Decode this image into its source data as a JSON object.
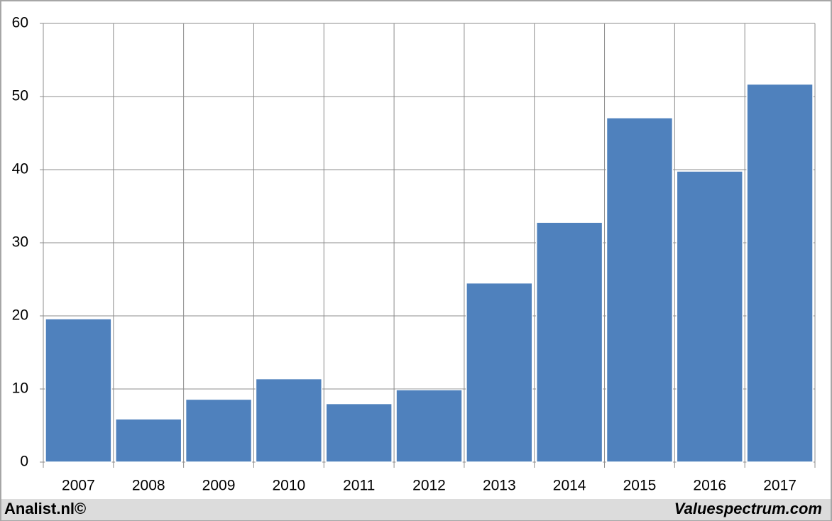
{
  "chart_data": {
    "type": "bar",
    "categories": [
      "2007",
      "2008",
      "2009",
      "2010",
      "2011",
      "2012",
      "2013",
      "2014",
      "2015",
      "2016",
      "2017"
    ],
    "values": [
      19.6,
      5.9,
      8.6,
      11.4,
      8.0,
      9.9,
      24.5,
      32.8,
      47.1,
      39.8,
      51.7
    ],
    "color": "#4f81bd",
    "ylim": [
      0,
      60
    ],
    "yticks": [
      0,
      10,
      20,
      30,
      40,
      50,
      60
    ],
    "grid": true
  },
  "footer": {
    "left": "Analist.nl©",
    "right": "Valuespectrum.com"
  }
}
